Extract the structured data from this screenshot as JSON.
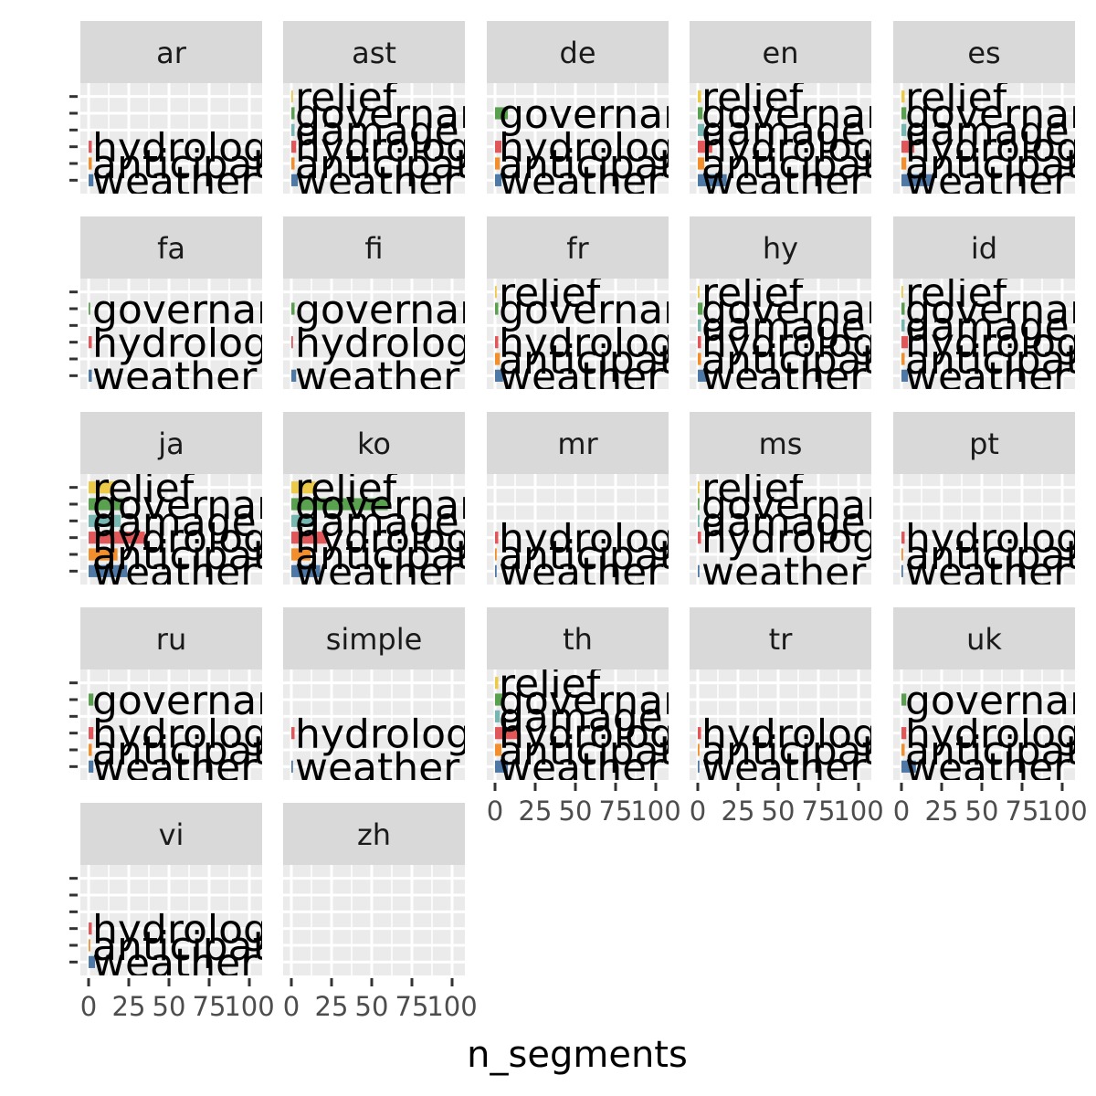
{
  "chart_data": {
    "type": "bar",
    "orientation": "horizontal",
    "facet_var": "language",
    "x_label": "n_segments",
    "xlim": [
      0,
      105
    ],
    "x_ticks": [
      0,
      25,
      50,
      75,
      100
    ],
    "x_tick_labels": [
      "0",
      "25",
      "50",
      "75",
      "100"
    ],
    "categories": [
      "weather",
      "anticipation",
      "hydrology",
      "damage",
      "governance",
      "relief"
    ],
    "series_colors": {
      "weather": "#4e79a7",
      "anticipation": "#f28e2b",
      "hydrology": "#e15759",
      "damage": "#76b7b2",
      "governance": "#59a14f",
      "relief": "#edc948"
    },
    "grid": true,
    "legend": "none",
    "panels": [
      {
        "facet": "ar",
        "values": {
          "weather": 3,
          "anticipation": 2,
          "hydrology": 2,
          "damage": 0,
          "governance": 0,
          "relief": 0
        }
      },
      {
        "facet": "ast",
        "values": {
          "weather": 4,
          "anticipation": 2,
          "hydrology": 3,
          "damage": 2,
          "governance": 2,
          "relief": 1
        }
      },
      {
        "facet": "de",
        "values": {
          "weather": 4,
          "anticipation": 3,
          "hydrology": 4,
          "damage": 0,
          "governance": 8,
          "relief": 0
        }
      },
      {
        "facet": "en",
        "values": {
          "weather": 18,
          "anticipation": 4,
          "hydrology": 9,
          "damage": 4,
          "governance": 3,
          "relief": 2
        }
      },
      {
        "facet": "es",
        "values": {
          "weather": 19,
          "anticipation": 3,
          "hydrology": 8,
          "damage": 3,
          "governance": 3,
          "relief": 2
        }
      },
      {
        "facet": "fa",
        "values": {
          "weather": 2,
          "anticipation": 0,
          "hydrology": 2,
          "damage": 0,
          "governance": 1,
          "relief": 0
        }
      },
      {
        "facet": "fi",
        "values": {
          "weather": 3,
          "anticipation": 0,
          "hydrology": 1,
          "damage": 0,
          "governance": 2,
          "relief": 0
        }
      },
      {
        "facet": "fr",
        "values": {
          "weather": 5,
          "anticipation": 3,
          "hydrology": 2,
          "damage": 0,
          "governance": 2,
          "relief": 1
        }
      },
      {
        "facet": "hy",
        "values": {
          "weather": 6,
          "anticipation": 2,
          "hydrology": 2,
          "damage": 2,
          "governance": 3,
          "relief": 1
        }
      },
      {
        "facet": "id",
        "values": {
          "weather": 4,
          "anticipation": 2,
          "hydrology": 4,
          "damage": 2,
          "governance": 2,
          "relief": 1
        }
      },
      {
        "facet": "ja",
        "values": {
          "weather": 24,
          "anticipation": 18,
          "hydrology": 35,
          "damage": 20,
          "governance": 22,
          "relief": 16
        }
      },
      {
        "facet": "ko",
        "values": {
          "weather": 18,
          "anticipation": 12,
          "hydrology": 22,
          "damage": 14,
          "governance": 60,
          "relief": 15
        }
      },
      {
        "facet": "mr",
        "values": {
          "weather": 1,
          "anticipation": 1,
          "hydrology": 2,
          "damage": 0,
          "governance": 0,
          "relief": 0
        }
      },
      {
        "facet": "ms",
        "values": {
          "weather": 1,
          "anticipation": 0,
          "hydrology": 2,
          "damage": 1,
          "governance": 1,
          "relief": 1
        }
      },
      {
        "facet": "pt",
        "values": {
          "weather": 1,
          "anticipation": 1,
          "hydrology": 2,
          "damage": 0,
          "governance": 0,
          "relief": 0
        }
      },
      {
        "facet": "ru",
        "values": {
          "weather": 3,
          "anticipation": 2,
          "hydrology": 3,
          "damage": 0,
          "governance": 3,
          "relief": 0
        }
      },
      {
        "facet": "simple",
        "values": {
          "weather": 1,
          "anticipation": 0,
          "hydrology": 2,
          "damage": 0,
          "governance": 0,
          "relief": 0
        }
      },
      {
        "facet": "th",
        "values": {
          "weather": 8,
          "anticipation": 4,
          "hydrology": 14,
          "damage": 3,
          "governance": 5,
          "relief": 2
        }
      },
      {
        "facet": "tr",
        "values": {
          "weather": 1,
          "anticipation": 1,
          "hydrology": 2,
          "damage": 0,
          "governance": 0,
          "relief": 0
        }
      },
      {
        "facet": "uk",
        "values": {
          "weather": 9,
          "anticipation": 2,
          "hydrology": 3,
          "damage": 0,
          "governance": 3,
          "relief": 0
        }
      },
      {
        "facet": "vi",
        "values": {
          "weather": 4,
          "anticipation": 1,
          "hydrology": 2,
          "damage": 0,
          "governance": 0,
          "relief": 0
        }
      },
      {
        "facet": "zh",
        "values": {
          "weather": 0,
          "anticipation": 0,
          "hydrology": 0,
          "damage": 0,
          "governance": 0,
          "relief": 0
        }
      }
    ]
  }
}
